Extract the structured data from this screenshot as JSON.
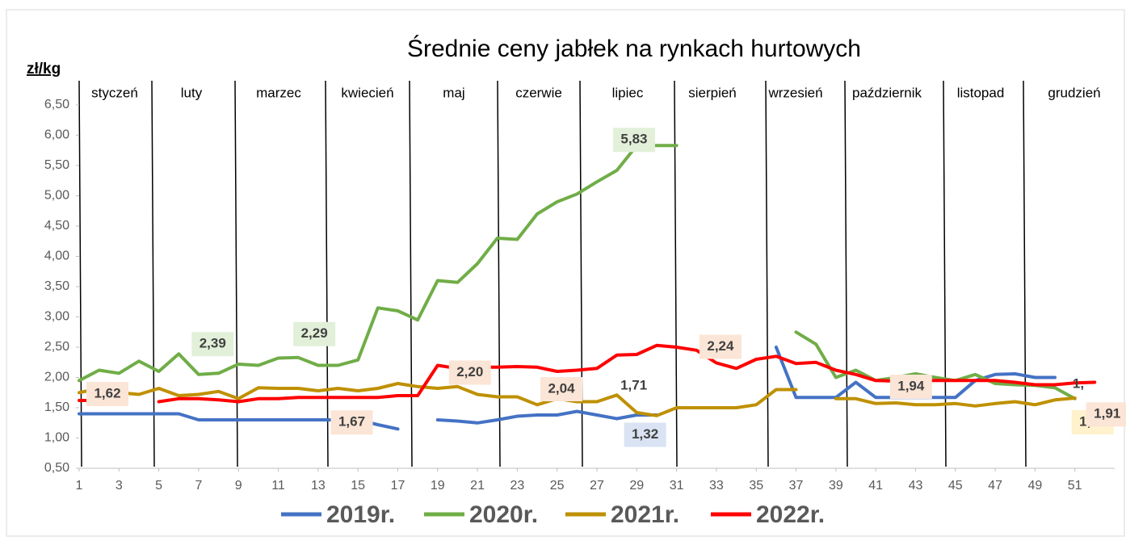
{
  "chart_data": {
    "type": "line",
    "title": "Średnie ceny jabłek na rynkach hurtowych",
    "y_label": "zł/kg",
    "months": [
      "styczeń",
      "luty",
      "marzec",
      "kwiecień",
      "maj",
      "czerwie",
      "lipiec",
      "sierpień",
      "wrzesień",
      "październik",
      "listopad",
      "grudzień"
    ],
    "x": [
      1,
      2,
      3,
      4,
      5,
      6,
      7,
      8,
      9,
      10,
      11,
      12,
      13,
      14,
      15,
      16,
      17,
      18,
      19,
      20,
      21,
      22,
      23,
      24,
      25,
      26,
      27,
      28,
      29,
      30,
      31,
      32,
      33,
      34,
      35,
      36,
      37,
      38,
      39,
      40,
      41,
      42,
      43,
      44,
      45,
      46,
      47,
      48,
      49,
      50,
      51,
      52
    ],
    "xlim": [
      1,
      53
    ],
    "xticks": [
      1,
      3,
      5,
      7,
      9,
      11,
      13,
      15,
      17,
      19,
      21,
      23,
      25,
      27,
      29,
      31,
      33,
      35,
      37,
      39,
      41,
      43,
      45,
      47,
      49,
      51
    ],
    "ylim": [
      0.5,
      6.5
    ],
    "yticks": [
      {
        "value": 0.5,
        "label": "0,50"
      },
      {
        "value": 1,
        "label": "1,00"
      },
      {
        "value": 1.5,
        "label": "1,50"
      },
      {
        "value": 2,
        "label": "2,00"
      },
      {
        "value": 2.5,
        "label": "2,50"
      },
      {
        "value": 3,
        "label": "3,00"
      },
      {
        "value": 3.5,
        "label": "3,50"
      },
      {
        "value": 4,
        "label": "4,00"
      },
      {
        "value": 4.5,
        "label": "4,50"
      },
      {
        "value": 5,
        "label": "5,00"
      },
      {
        "value": 5.5,
        "label": "5,50"
      },
      {
        "value": 6,
        "label": "6,00"
      },
      {
        "value": 6.5,
        "label": "6,50"
      }
    ],
    "grid": false,
    "legend": "bottom",
    "annotations": [
      "2,04",
      "1,"
    ],
    "series": [
      {
        "name": "2019r.",
        "color": "#4472c4",
        "values": [
          1.4,
          1.4,
          1.4,
          1.4,
          1.4,
          1.4,
          1.3,
          1.3,
          1.3,
          1.3,
          1.3,
          1.3,
          1.3,
          1.3,
          1.3,
          1.22,
          1.15,
          null,
          1.3,
          1.28,
          1.25,
          1.3,
          1.36,
          1.38,
          1.38,
          1.44,
          1.38,
          1.32,
          1.38,
          1.38,
          null,
          null,
          null,
          null,
          null,
          2.5,
          1.67,
          1.67,
          1.67,
          1.92,
          1.67,
          1.67,
          1.67,
          1.67,
          1.67,
          1.95,
          2.05,
          2.06,
          2.0,
          2.0,
          null,
          null
        ],
        "value_labels": [
          null,
          null,
          null,
          null,
          null,
          null,
          null,
          null,
          null,
          null,
          null,
          null,
          null,
          null,
          null,
          null,
          null,
          null,
          null,
          null,
          null,
          null,
          null,
          null,
          null,
          null,
          null,
          "1,32",
          null,
          null,
          null,
          null,
          null,
          null,
          null,
          null,
          null,
          null,
          null,
          null,
          null,
          null,
          null,
          null,
          null,
          null,
          null,
          null,
          null,
          null,
          null,
          null
        ]
      },
      {
        "name": "2020r.",
        "color": "#70ad47",
        "values": [
          1.95,
          2.12,
          2.07,
          2.27,
          2.1,
          2.39,
          2.05,
          2.07,
          2.22,
          2.2,
          2.32,
          2.33,
          2.2,
          2.2,
          2.29,
          3.15,
          3.1,
          2.95,
          3.6,
          3.57,
          3.88,
          4.3,
          4.28,
          4.7,
          4.9,
          5.03,
          5.23,
          5.42,
          5.83,
          5.83,
          5.83,
          null,
          null,
          null,
          null,
          null,
          2.75,
          2.55,
          2.0,
          2.12,
          1.95,
          2.0,
          2.06,
          2.0,
          1.95,
          2.05,
          1.9,
          1.88,
          1.87,
          1.83,
          1.65,
          null
        ],
        "value_labels": [
          null,
          null,
          null,
          null,
          null,
          "2,39",
          null,
          null,
          null,
          null,
          null,
          null,
          null,
          null,
          "2,29",
          null,
          null,
          null,
          null,
          null,
          null,
          null,
          null,
          null,
          null,
          null,
          null,
          null,
          null,
          "5,83",
          null,
          null,
          null,
          null,
          null,
          null,
          null,
          null,
          null,
          null,
          null,
          null,
          null,
          null,
          null,
          null,
          null,
          null,
          null,
          null,
          null,
          null
        ]
      },
      {
        "name": "2021r.",
        "color": "#bf9000",
        "values": [
          1.75,
          1.82,
          1.75,
          1.72,
          1.82,
          1.7,
          1.72,
          1.77,
          1.65,
          1.83,
          1.82,
          1.82,
          1.78,
          1.82,
          1.78,
          1.82,
          1.9,
          1.85,
          1.82,
          1.85,
          1.72,
          1.68,
          1.68,
          1.55,
          1.65,
          1.6,
          1.6,
          1.71,
          1.42,
          1.37,
          1.5,
          1.5,
          1.5,
          1.5,
          1.55,
          1.8,
          1.8,
          null,
          1.65,
          1.65,
          1.57,
          1.58,
          1.55,
          1.55,
          1.57,
          1.53,
          1.57,
          1.6,
          1.55,
          1.63,
          1.66,
          null
        ],
        "value_labels": [
          null,
          null,
          null,
          null,
          null,
          null,
          null,
          null,
          null,
          null,
          null,
          null,
          null,
          null,
          null,
          null,
          null,
          null,
          null,
          null,
          null,
          null,
          null,
          null,
          null,
          null,
          null,
          "1,71",
          null,
          null,
          null,
          null,
          null,
          null,
          null,
          null,
          null,
          null,
          null,
          null,
          null,
          null,
          null,
          null,
          null,
          null,
          null,
          null,
          null,
          null,
          "1,66",
          null
        ]
      },
      {
        "name": "2022r.",
        "color": "#ff0000",
        "values": [
          1.62,
          1.62,
          null,
          null,
          1.6,
          1.65,
          1.65,
          1.63,
          1.6,
          1.65,
          1.65,
          1.67,
          1.67,
          1.67,
          1.67,
          1.67,
          1.7,
          1.7,
          2.2,
          2.15,
          2.17,
          2.17,
          2.18,
          2.17,
          2.1,
          2.12,
          2.15,
          2.37,
          2.38,
          2.53,
          2.5,
          2.45,
          2.24,
          2.15,
          2.3,
          2.35,
          2.23,
          2.25,
          2.12,
          2.05,
          1.95,
          1.94,
          1.95,
          1.95,
          1.95,
          1.95,
          1.95,
          1.92,
          1.88,
          1.88,
          1.91,
          1.92
        ],
        "value_labels": [
          "1,62",
          null,
          null,
          null,
          null,
          null,
          null,
          null,
          null,
          null,
          null,
          null,
          null,
          "1,67",
          null,
          null,
          null,
          null,
          "2,20",
          null,
          null,
          null,
          null,
          null,
          null,
          null,
          null,
          null,
          null,
          null,
          null,
          null,
          "2,24",
          null,
          null,
          null,
          null,
          null,
          null,
          null,
          null,
          "1,94",
          null,
          null,
          null,
          null,
          null,
          null,
          null,
          null,
          "1,91",
          null
        ]
      }
    ]
  }
}
